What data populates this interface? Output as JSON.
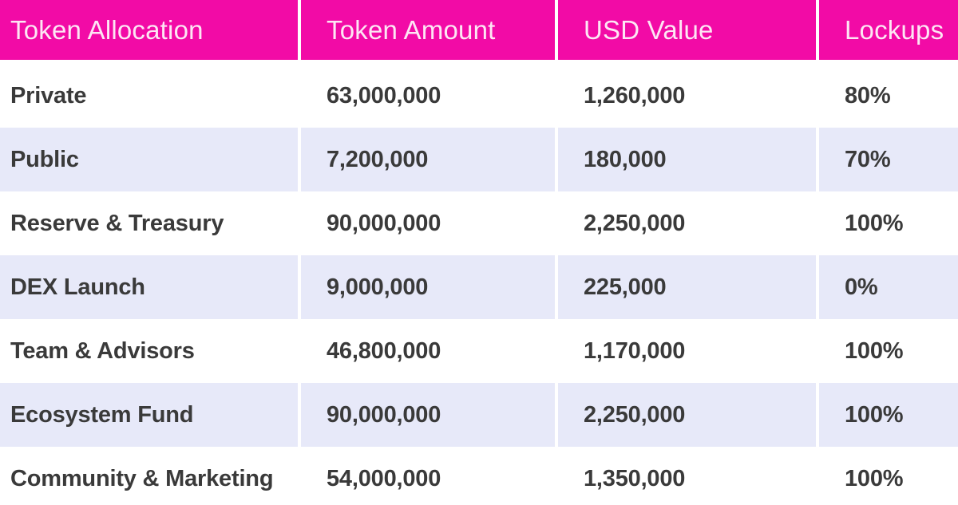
{
  "chart_data": {
    "type": "table",
    "columns": [
      "Token Allocation",
      "Token Amount",
      "USD Value",
      "Lockups"
    ],
    "rows": [
      [
        "Private",
        "63,000,000",
        "1,260,000",
        "80%"
      ],
      [
        "Public",
        "7,200,000",
        "180,000",
        "70%"
      ],
      [
        "Reserve & Treasury",
        "90,000,000",
        "2,250,000",
        "100%"
      ],
      [
        "DEX Launch",
        "9,000,000",
        "225,000",
        "0%"
      ],
      [
        "Team & Advisors",
        "46,800,000",
        "1,170,000",
        "100%"
      ],
      [
        "Ecosystem Fund",
        "90,000,000",
        "2,250,000",
        "100%"
      ],
      [
        "Community & Marketing",
        "54,000,000",
        "1,350,000",
        "100%"
      ]
    ],
    "numeric": {
      "token_amount": [
        63000000,
        7200000,
        90000000,
        9000000,
        46800000,
        90000000,
        54000000
      ],
      "usd_value": [
        1260000,
        180000,
        2250000,
        225000,
        1170000,
        2250000,
        1350000
      ],
      "lockups_percent": [
        80,
        70,
        100,
        0,
        100,
        100,
        100
      ]
    },
    "layout": {
      "zebra": "rows 2,4,6 lavender; others white",
      "header_position": "top",
      "column_separator": "white 4px gutters"
    }
  },
  "colors": {
    "header_bg": "#f20ba6",
    "header_text": "#fde6f4",
    "alt_row_bg": "#e7e9f9",
    "row_bg": "#ffffff",
    "body_text": "#3a3a3a"
  }
}
